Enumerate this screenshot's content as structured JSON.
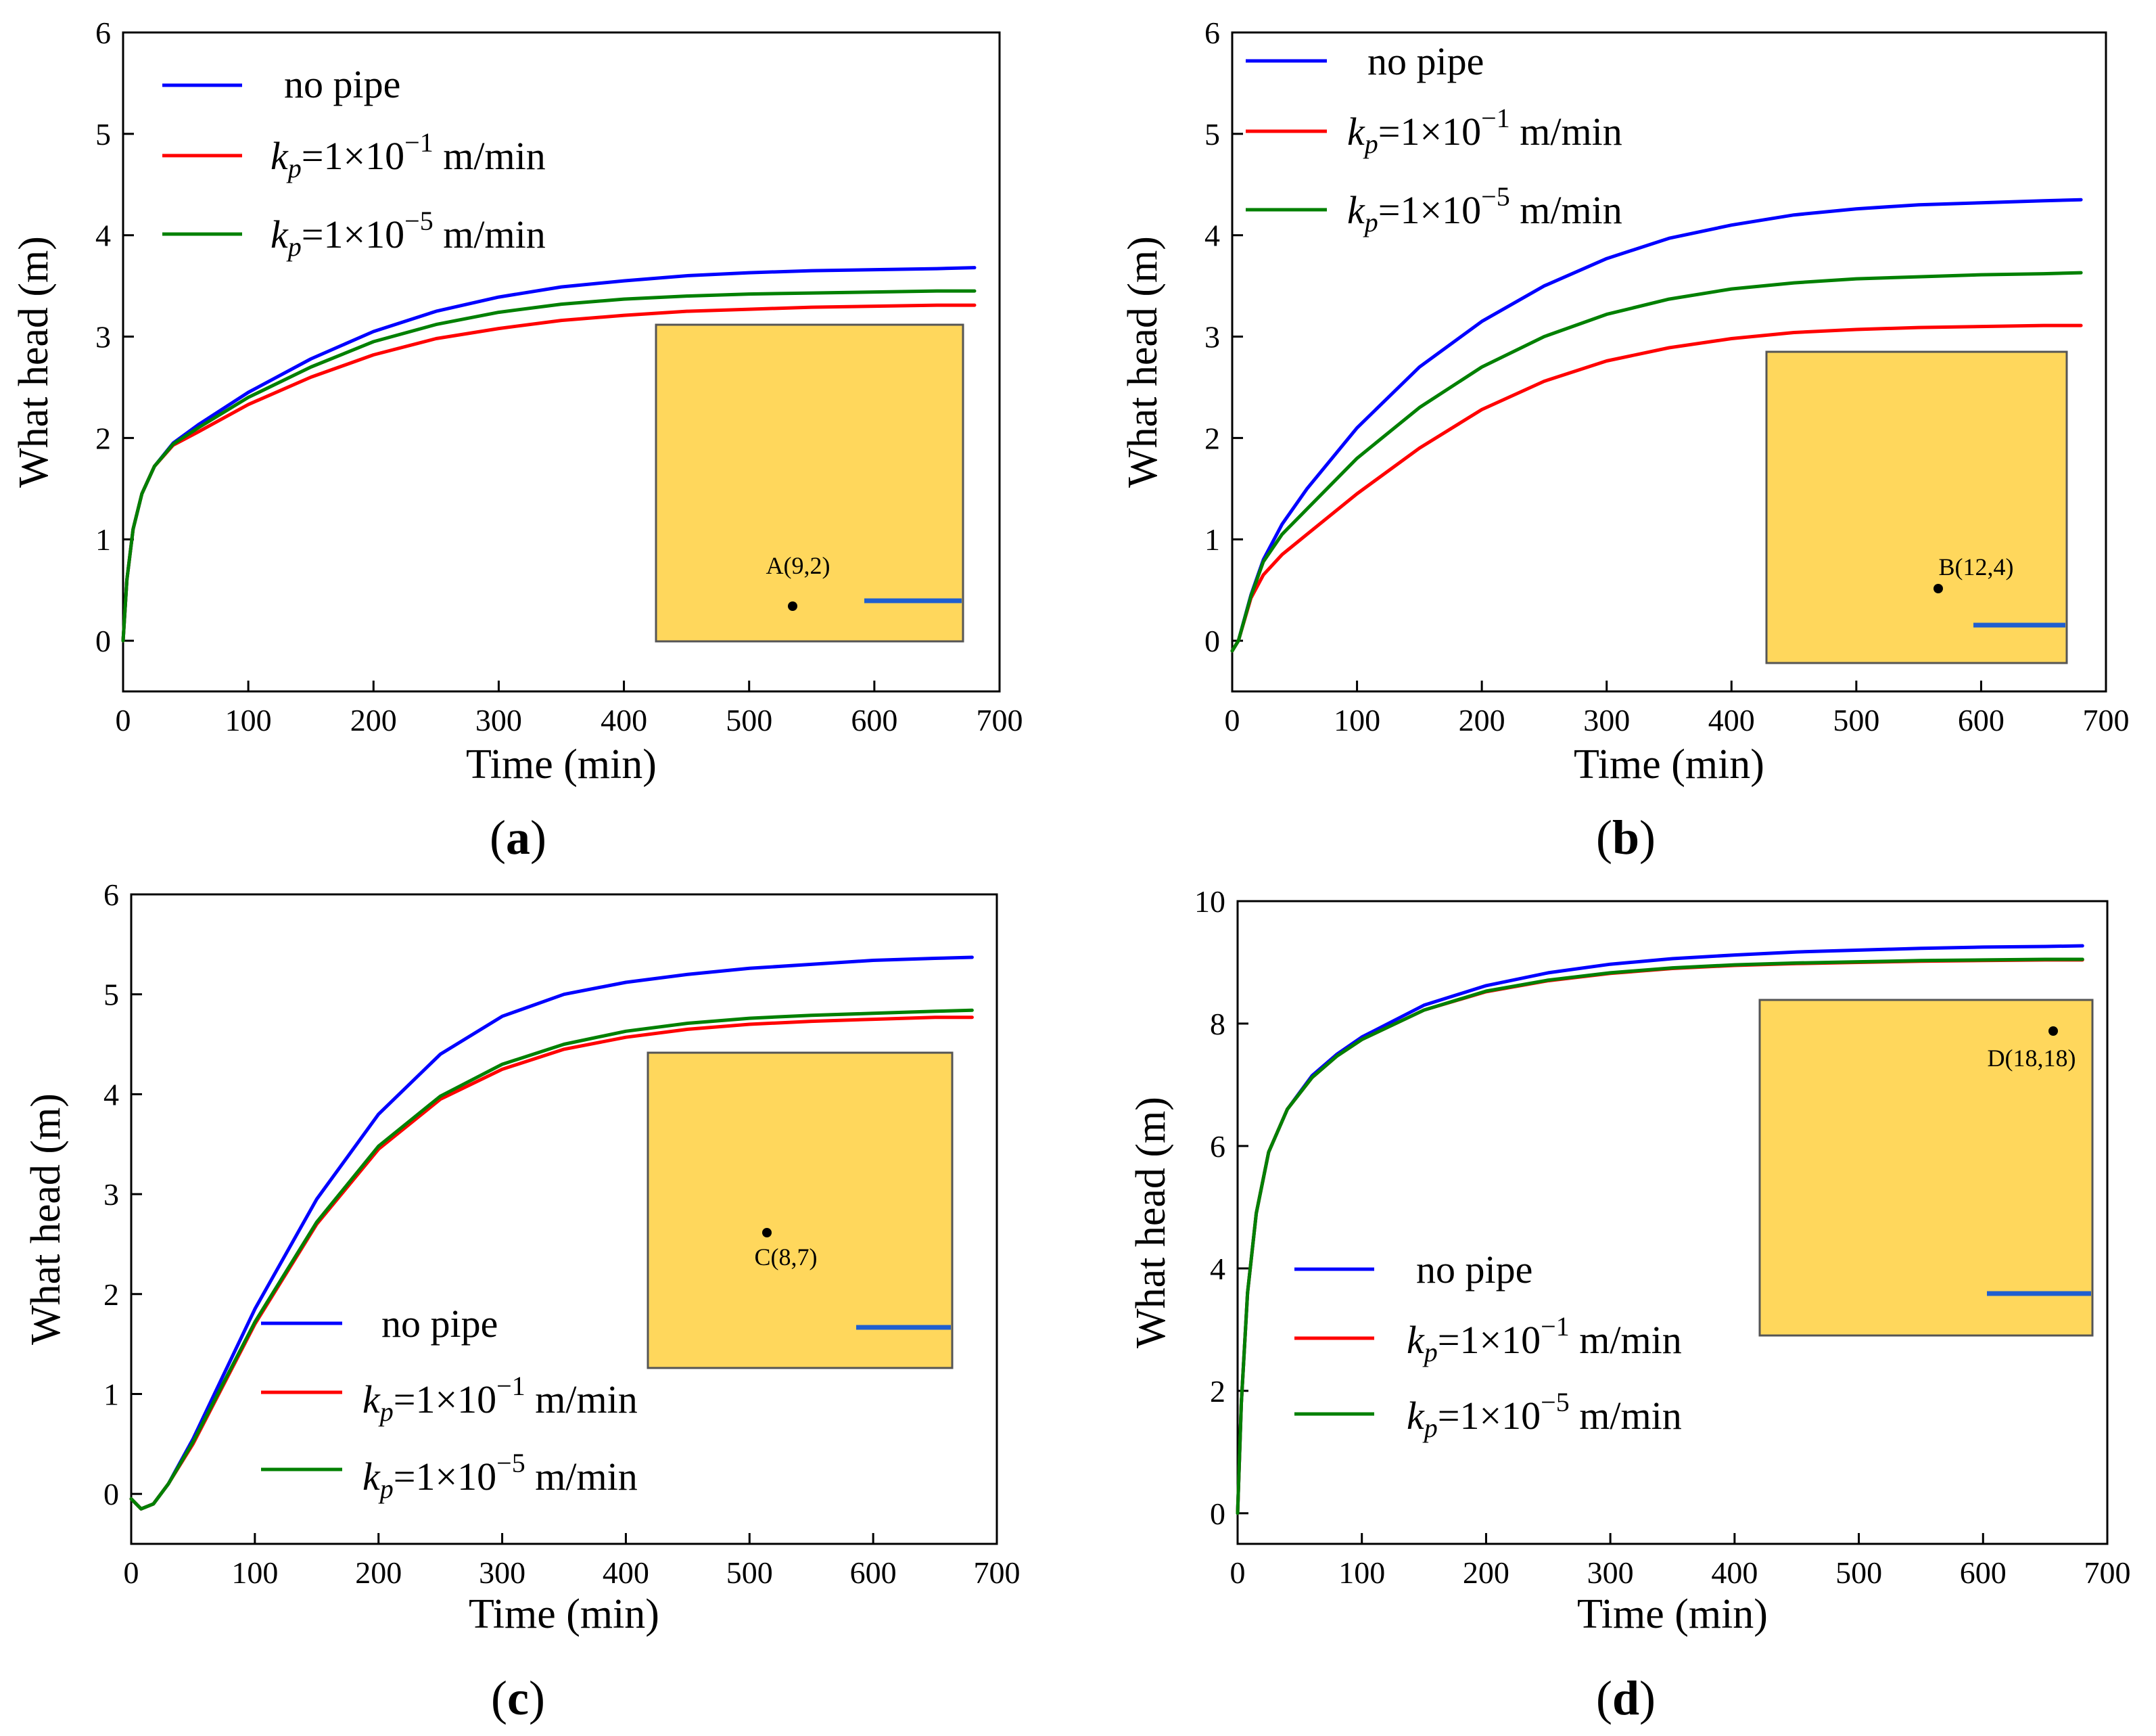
{
  "chart_data": [
    {
      "type": "line",
      "panel_label": "a",
      "xlabel": "Time (min)",
      "ylabel": "What head (m)",
      "xlim": [
        0,
        700
      ],
      "ylim": [
        -0.5,
        6
      ],
      "xticks": [
        0,
        100,
        200,
        300,
        400,
        500,
        600,
        700
      ],
      "yticks": [
        0,
        1,
        2,
        3,
        4,
        5,
        6
      ],
      "legend_position": "top-left",
      "series": [
        {
          "name": "no pipe",
          "color": "#0000FF",
          "x": [
            0,
            3,
            8,
            15,
            25,
            40,
            60,
            100,
            150,
            200,
            250,
            300,
            350,
            400,
            450,
            500,
            550,
            600,
            650,
            680
          ],
          "y": [
            0,
            0.6,
            1.1,
            1.45,
            1.72,
            1.95,
            2.13,
            2.45,
            2.78,
            3.05,
            3.25,
            3.39,
            3.49,
            3.55,
            3.6,
            3.63,
            3.65,
            3.66,
            3.67,
            3.68
          ]
        },
        {
          "name": "kp=1×10−1 m/min",
          "color": "#FF0000",
          "x": [
            0,
            3,
            8,
            15,
            25,
            40,
            60,
            100,
            150,
            200,
            250,
            300,
            350,
            400,
            450,
            500,
            550,
            600,
            650,
            680
          ],
          "y": [
            0,
            0.6,
            1.1,
            1.45,
            1.72,
            1.93,
            2.06,
            2.33,
            2.6,
            2.82,
            2.98,
            3.08,
            3.16,
            3.21,
            3.25,
            3.27,
            3.29,
            3.3,
            3.31,
            3.31
          ]
        },
        {
          "name": "kp=1×10−5 m/min",
          "color": "#008000",
          "x": [
            0,
            3,
            8,
            15,
            25,
            40,
            60,
            100,
            150,
            200,
            250,
            300,
            350,
            400,
            450,
            500,
            550,
            600,
            650,
            680
          ],
          "y": [
            0,
            0.6,
            1.1,
            1.45,
            1.72,
            1.94,
            2.1,
            2.4,
            2.7,
            2.95,
            3.12,
            3.24,
            3.32,
            3.37,
            3.4,
            3.42,
            3.43,
            3.44,
            3.45,
            3.45
          ]
        }
      ],
      "point_label": "A(9,2)"
    },
    {
      "type": "line",
      "panel_label": "b",
      "xlabel": "Time (min)",
      "ylabel": "What head (m)",
      "xlim": [
        0,
        700
      ],
      "ylim": [
        -0.5,
        6
      ],
      "xticks": [
        0,
        100,
        200,
        300,
        400,
        500,
        600,
        700
      ],
      "yticks": [
        0,
        1,
        2,
        3,
        4,
        5,
        6
      ],
      "legend_position": "top-left",
      "series": [
        {
          "name": "no pipe",
          "color": "#0000FF",
          "x": [
            0,
            5,
            15,
            25,
            40,
            60,
            100,
            150,
            200,
            250,
            300,
            350,
            400,
            450,
            500,
            550,
            600,
            650,
            680
          ],
          "y": [
            -0.1,
            0.0,
            0.45,
            0.8,
            1.15,
            1.5,
            2.1,
            2.7,
            3.15,
            3.5,
            3.77,
            3.97,
            4.1,
            4.2,
            4.26,
            4.3,
            4.32,
            4.34,
            4.35
          ]
        },
        {
          "name": "kp=1×10−1 m/min",
          "color": "#FF0000",
          "x": [
            0,
            5,
            15,
            25,
            40,
            60,
            100,
            150,
            200,
            250,
            300,
            350,
            400,
            450,
            500,
            550,
            600,
            650,
            680
          ],
          "y": [
            -0.1,
            0.0,
            0.42,
            0.65,
            0.85,
            1.05,
            1.45,
            1.9,
            2.28,
            2.56,
            2.76,
            2.89,
            2.98,
            3.04,
            3.07,
            3.09,
            3.1,
            3.11,
            3.11
          ]
        },
        {
          "name": "kp=1×10−5 m/min",
          "color": "#008000",
          "x": [
            0,
            5,
            15,
            25,
            40,
            60,
            100,
            150,
            200,
            250,
            300,
            350,
            400,
            450,
            500,
            550,
            600,
            650,
            680
          ],
          "y": [
            -0.1,
            0.0,
            0.44,
            0.78,
            1.05,
            1.3,
            1.8,
            2.3,
            2.7,
            3.0,
            3.22,
            3.37,
            3.47,
            3.53,
            3.57,
            3.59,
            3.61,
            3.62,
            3.63
          ]
        }
      ],
      "point_label": "B(12,4)"
    },
    {
      "type": "line",
      "panel_label": "c",
      "xlabel": "Time (min)",
      "ylabel": "What head (m)",
      "xlim": [
        0,
        700
      ],
      "ylim": [
        -0.5,
        6
      ],
      "xticks": [
        0,
        100,
        200,
        300,
        400,
        500,
        600,
        700
      ],
      "yticks": [
        0,
        1,
        2,
        3,
        4,
        5,
        6
      ],
      "legend_position": "bottom-left",
      "series": [
        {
          "name": "no pipe",
          "color": "#0000FF",
          "x": [
            0,
            8,
            18,
            30,
            50,
            75,
            100,
            150,
            200,
            250,
            300,
            350,
            400,
            450,
            500,
            550,
            600,
            650,
            680
          ],
          "y": [
            -0.05,
            -0.15,
            -0.1,
            0.1,
            0.55,
            1.2,
            1.85,
            2.95,
            3.8,
            4.4,
            4.78,
            5.0,
            5.12,
            5.2,
            5.26,
            5.3,
            5.34,
            5.36,
            5.37
          ]
        },
        {
          "name": "kp=1×10−1 m/min",
          "color": "#FF0000",
          "x": [
            0,
            8,
            18,
            30,
            50,
            75,
            100,
            150,
            200,
            250,
            300,
            350,
            400,
            450,
            500,
            550,
            600,
            650,
            680
          ],
          "y": [
            -0.05,
            -0.15,
            -0.1,
            0.1,
            0.5,
            1.1,
            1.7,
            2.7,
            3.45,
            3.95,
            4.25,
            4.45,
            4.57,
            4.65,
            4.7,
            4.73,
            4.75,
            4.77,
            4.77
          ]
        },
        {
          "name": "kp=1×10−5 m/min",
          "color": "#008000",
          "x": [
            0,
            8,
            18,
            30,
            50,
            75,
            100,
            150,
            200,
            250,
            300,
            350,
            400,
            450,
            500,
            550,
            600,
            650,
            680
          ],
          "y": [
            -0.05,
            -0.15,
            -0.1,
            0.1,
            0.52,
            1.12,
            1.72,
            2.72,
            3.48,
            3.98,
            4.3,
            4.5,
            4.63,
            4.71,
            4.76,
            4.79,
            4.81,
            4.83,
            4.84
          ]
        }
      ],
      "point_label": "C(8,7)"
    },
    {
      "type": "line",
      "panel_label": "d",
      "xlabel": "Time (min)",
      "ylabel": "What head (m)",
      "xlim": [
        0,
        700
      ],
      "ylim": [
        -0.5,
        10
      ],
      "xticks": [
        0,
        100,
        200,
        300,
        400,
        500,
        600,
        700
      ],
      "yticks": [
        0,
        2,
        4,
        6,
        8,
        10
      ],
      "legend_position": "bottom-left",
      "series": [
        {
          "name": "no pipe",
          "color": "#0000FF",
          "x": [
            0,
            3,
            8,
            15,
            25,
            40,
            60,
            80,
            100,
            150,
            200,
            250,
            300,
            350,
            400,
            450,
            500,
            550,
            600,
            650,
            680
          ],
          "y": [
            0,
            1.8,
            3.6,
            4.9,
            5.9,
            6.6,
            7.15,
            7.5,
            7.78,
            8.3,
            8.62,
            8.83,
            8.97,
            9.06,
            9.12,
            9.17,
            9.2,
            9.23,
            9.25,
            9.26,
            9.27
          ]
        },
        {
          "name": "kp=1×10−1 m/min",
          "color": "#FF0000",
          "x": [
            0,
            3,
            8,
            15,
            25,
            40,
            60,
            80,
            100,
            150,
            200,
            250,
            300,
            350,
            400,
            450,
            500,
            550,
            600,
            650,
            680
          ],
          "y": [
            0,
            1.8,
            3.6,
            4.9,
            5.9,
            6.6,
            7.12,
            7.47,
            7.74,
            8.22,
            8.52,
            8.7,
            8.82,
            8.9,
            8.95,
            8.98,
            9.0,
            9.02,
            9.03,
            9.04,
            9.04
          ]
        },
        {
          "name": "kp=1×10−5 m/min",
          "color": "#008000",
          "x": [
            0,
            3,
            8,
            15,
            25,
            40,
            60,
            80,
            100,
            150,
            200,
            250,
            300,
            350,
            400,
            450,
            500,
            550,
            600,
            650,
            680
          ],
          "y": [
            0,
            1.8,
            3.6,
            4.9,
            5.9,
            6.6,
            7.12,
            7.47,
            7.74,
            8.22,
            8.53,
            8.71,
            8.83,
            8.91,
            8.96,
            8.99,
            9.01,
            9.03,
            9.04,
            9.05,
            9.05
          ]
        }
      ],
      "point_label": "D(18,18)"
    }
  ],
  "legend_labels": {
    "no_pipe": "no pipe",
    "k_symbol": "k",
    "k_sub": "p",
    "eq_prefix": "=1×10",
    "exp_1": "−1",
    "exp_5": "−5",
    "unit": " m/min"
  },
  "panel_labels": [
    "(a)",
    "(b)",
    "(c)",
    "(d)"
  ]
}
